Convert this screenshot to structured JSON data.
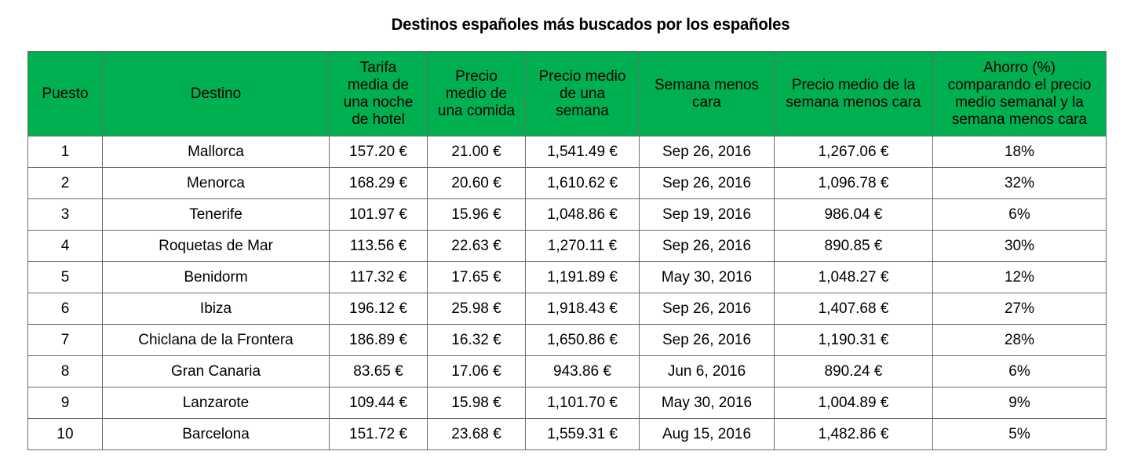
{
  "title": "Destinos españoles más buscados por los españoles",
  "table": {
    "header_color": "#00b050",
    "headers": [
      "Puesto",
      "Destino",
      "Tarifa media de una noche de hotel",
      "Precio medio de una comida",
      "Precio medio de una semana",
      "Semana menos cara",
      "Precio medio de la semana menos cara",
      "Ahorro (%) comparando el precio medio semanal  y la semana menos cara"
    ],
    "rows": [
      [
        "1",
        "Mallorca",
        "157.20 €",
        "21.00 €",
        "1,541.49 €",
        "Sep 26, 2016",
        "1,267.06 €",
        "18%"
      ],
      [
        "2",
        "Menorca",
        "168.29 €",
        "20.60 €",
        "1,610.62 €",
        "Sep 26, 2016",
        "1,096.78 €",
        "32%"
      ],
      [
        "3",
        "Tenerife",
        "101.97 €",
        "15.96 €",
        "1,048.86 €",
        "Sep 19, 2016",
        "986.04 €",
        "6%"
      ],
      [
        "4",
        "Roquetas de Mar",
        "113.56 €",
        "22.63 €",
        "1,270.11 €",
        "Sep 26, 2016",
        "890.85 €",
        "30%"
      ],
      [
        "5",
        "Benidorm",
        "117.32 €",
        "17.65 €",
        "1,191.89 €",
        "May 30, 2016",
        "1,048.27 €",
        "12%"
      ],
      [
        "6",
        "Ibiza",
        "196.12 €",
        "25.98 €",
        "1,918.43 €",
        "Sep 26, 2016",
        "1,407.68 €",
        "27%"
      ],
      [
        "7",
        "Chiclana de la Frontera",
        "186.89 €",
        "16.32 €",
        "1,650.86 €",
        "Sep 26, 2016",
        "1,190.31 €",
        "28%"
      ],
      [
        "8",
        "Gran Canaria",
        "83.65 €",
        "17.06 €",
        "943.86 €",
        "Jun 6, 2016",
        "890.24 €",
        "6%"
      ],
      [
        "9",
        "Lanzarote",
        "109.44 €",
        "15.98 €",
        "1,101.70 €",
        "May 30, 2016",
        "1,004.89 €",
        "9%"
      ],
      [
        "10",
        "Barcelona",
        "151.72 €",
        "23.68 €",
        "1,559.31 €",
        "Aug 15, 2016",
        "1,482.86 €",
        "5%"
      ]
    ]
  }
}
